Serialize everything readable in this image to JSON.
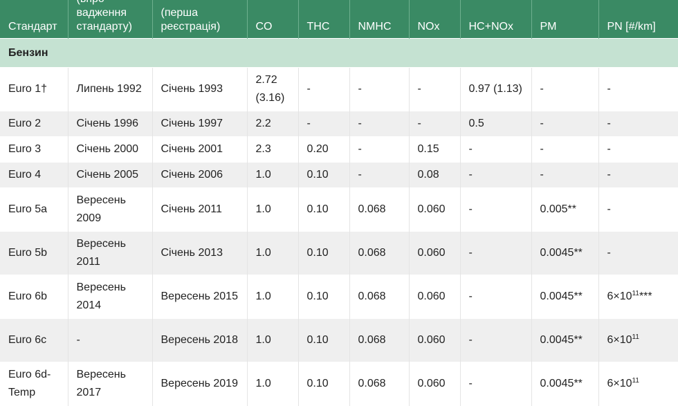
{
  "headers": [
    "Стандарт",
    "(впро-\nвадження\nстандарту)",
    "(перша\nреєстрація)",
    "CO",
    "THC",
    "NMHC",
    "NOx",
    "HC+NOx",
    "PM",
    "PN [#/km]"
  ],
  "section_label": "Бензин",
  "rows": [
    [
      "Euro 1†",
      "Липень 1992",
      "Січень 1993",
      "2.72 (3.16)",
      "-",
      "-",
      "-",
      "0.97 (1.13)",
      "-",
      "-"
    ],
    [
      "Euro 2",
      "Січень 1996",
      "Січень 1997",
      "2.2",
      "-",
      "-",
      "-",
      "0.5",
      "-",
      "-"
    ],
    [
      "Euro 3",
      "Січень 2000",
      "Січень 2001",
      "2.3",
      "0.20",
      "-",
      "0.15",
      "-",
      "-",
      "-"
    ],
    [
      "Euro 4",
      "Січень 2005",
      "Січень 2006",
      "1.0",
      "0.10",
      "-",
      "0.08",
      "-",
      "-",
      "-"
    ],
    [
      "Euro 5a",
      "Вересень 2009",
      "Січень 2011",
      "1.0",
      "0.10",
      "0.068",
      "0.060",
      "-",
      "0.005**",
      "-"
    ],
    [
      "Euro 5b",
      "Вересень 2011",
      "Січень 2013",
      "1.0",
      "0.10",
      "0.068",
      "0.060",
      "-",
      "0.0045**",
      "-"
    ],
    [
      "Euro 6b",
      "Вересень 2014",
      "Вересень 2015",
      "1.0",
      "0.10",
      "0.068",
      "0.060",
      "-",
      "0.0045**",
      "6×10¹¹***"
    ],
    [
      "Euro 6c",
      "-",
      "Вересень 2018",
      "1.0",
      "0.10",
      "0.068",
      "0.060",
      "-",
      "0.0045**",
      "6×10¹¹"
    ],
    [
      "Euro 6d-Temp",
      "Вересень 2017",
      "Вересень 2019",
      "1.0",
      "0.10",
      "0.068",
      "0.060",
      "-",
      "0.0045**",
      "6×10¹¹"
    ]
  ],
  "colors": {
    "header_bg": "#3a8a64",
    "section_bg": "#c5e2d2",
    "row_alt_bg": "#efefef"
  }
}
